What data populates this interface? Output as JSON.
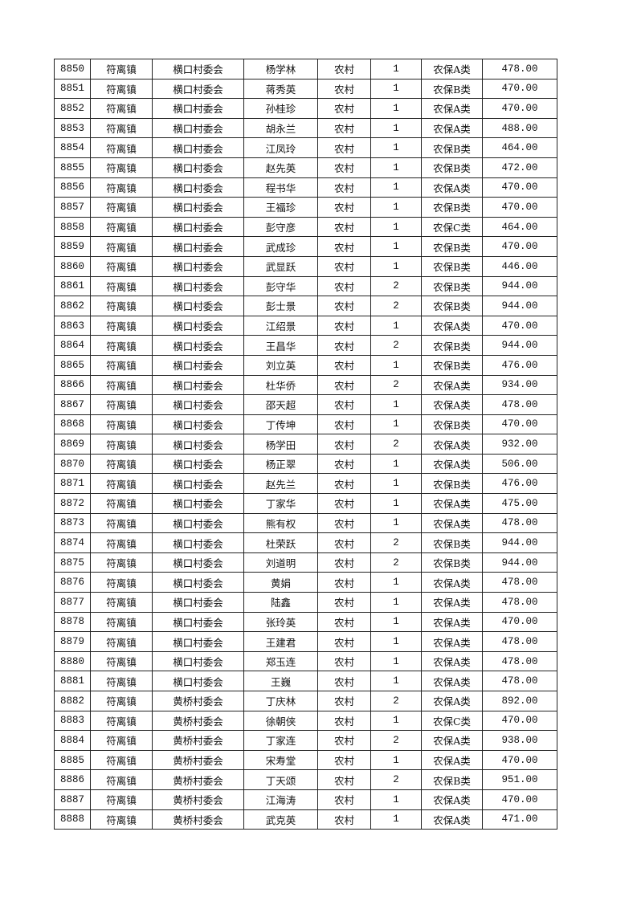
{
  "table": {
    "rows": [
      [
        "8850",
        "符离镇",
        "横口村委会",
        "杨学林",
        "农村",
        "1",
        "农保A类",
        "478.00"
      ],
      [
        "8851",
        "符离镇",
        "横口村委会",
        "蒋秀英",
        "农村",
        "1",
        "农保B类",
        "470.00"
      ],
      [
        "8852",
        "符离镇",
        "横口村委会",
        "孙桂珍",
        "农村",
        "1",
        "农保A类",
        "470.00"
      ],
      [
        "8853",
        "符离镇",
        "横口村委会",
        "胡永兰",
        "农村",
        "1",
        "农保A类",
        "488.00"
      ],
      [
        "8854",
        "符离镇",
        "横口村委会",
        "江凤玲",
        "农村",
        "1",
        "农保B类",
        "464.00"
      ],
      [
        "8855",
        "符离镇",
        "横口村委会",
        "赵先英",
        "农村",
        "1",
        "农保B类",
        "472.00"
      ],
      [
        "8856",
        "符离镇",
        "横口村委会",
        "程书华",
        "农村",
        "1",
        "农保A类",
        "470.00"
      ],
      [
        "8857",
        "符离镇",
        "横口村委会",
        "王福珍",
        "农村",
        "1",
        "农保B类",
        "470.00"
      ],
      [
        "8858",
        "符离镇",
        "横口村委会",
        "彭守彦",
        "农村",
        "1",
        "农保C类",
        "464.00"
      ],
      [
        "8859",
        "符离镇",
        "横口村委会",
        "武成珍",
        "农村",
        "1",
        "农保B类",
        "470.00"
      ],
      [
        "8860",
        "符离镇",
        "横口村委会",
        "武显跃",
        "农村",
        "1",
        "农保B类",
        "446.00"
      ],
      [
        "8861",
        "符离镇",
        "横口村委会",
        "彭守华",
        "农村",
        "2",
        "农保B类",
        "944.00"
      ],
      [
        "8862",
        "符离镇",
        "横口村委会",
        "彭士景",
        "农村",
        "2",
        "农保B类",
        "944.00"
      ],
      [
        "8863",
        "符离镇",
        "横口村委会",
        "江绍景",
        "农村",
        "1",
        "农保A类",
        "470.00"
      ],
      [
        "8864",
        "符离镇",
        "横口村委会",
        "王昌华",
        "农村",
        "2",
        "农保B类",
        "944.00"
      ],
      [
        "8865",
        "符离镇",
        "横口村委会",
        "刘立英",
        "农村",
        "1",
        "农保B类",
        "476.00"
      ],
      [
        "8866",
        "符离镇",
        "横口村委会",
        "杜华侨",
        "农村",
        "2",
        "农保A类",
        "934.00"
      ],
      [
        "8867",
        "符离镇",
        "横口村委会",
        "邵天超",
        "农村",
        "1",
        "农保A类",
        "478.00"
      ],
      [
        "8868",
        "符离镇",
        "横口村委会",
        "丁传坤",
        "农村",
        "1",
        "农保B类",
        "470.00"
      ],
      [
        "8869",
        "符离镇",
        "横口村委会",
        "杨学田",
        "农村",
        "2",
        "农保A类",
        "932.00"
      ],
      [
        "8870",
        "符离镇",
        "横口村委会",
        "杨正翠",
        "农村",
        "1",
        "农保A类",
        "506.00"
      ],
      [
        "8871",
        "符离镇",
        "横口村委会",
        "赵先兰",
        "农村",
        "1",
        "农保B类",
        "476.00"
      ],
      [
        "8872",
        "符离镇",
        "横口村委会",
        "丁家华",
        "农村",
        "1",
        "农保A类",
        "475.00"
      ],
      [
        "8873",
        "符离镇",
        "横口村委会",
        "熊有权",
        "农村",
        "1",
        "农保A类",
        "478.00"
      ],
      [
        "8874",
        "符离镇",
        "横口村委会",
        "杜荣跃",
        "农村",
        "2",
        "农保B类",
        "944.00"
      ],
      [
        "8875",
        "符离镇",
        "横口村委会",
        "刘道明",
        "农村",
        "2",
        "农保B类",
        "944.00"
      ],
      [
        "8876",
        "符离镇",
        "横口村委会",
        "黄娟",
        "农村",
        "1",
        "农保A类",
        "478.00"
      ],
      [
        "8877",
        "符离镇",
        "横口村委会",
        "陆鑫",
        "农村",
        "1",
        "农保A类",
        "478.00"
      ],
      [
        "8878",
        "符离镇",
        "横口村委会",
        "张玲英",
        "农村",
        "1",
        "农保A类",
        "470.00"
      ],
      [
        "8879",
        "符离镇",
        "横口村委会",
        "王建君",
        "农村",
        "1",
        "农保A类",
        "478.00"
      ],
      [
        "8880",
        "符离镇",
        "横口村委会",
        "郑玉连",
        "农村",
        "1",
        "农保A类",
        "478.00"
      ],
      [
        "8881",
        "符离镇",
        "横口村委会",
        "王巍",
        "农村",
        "1",
        "农保A类",
        "478.00"
      ],
      [
        "8882",
        "符离镇",
        "黄桥村委会",
        "丁庆林",
        "农村",
        "2",
        "农保A类",
        "892.00"
      ],
      [
        "8883",
        "符离镇",
        "黄桥村委会",
        "徐朝侠",
        "农村",
        "1",
        "农保C类",
        "470.00"
      ],
      [
        "8884",
        "符离镇",
        "黄桥村委会",
        "丁家连",
        "农村",
        "2",
        "农保A类",
        "938.00"
      ],
      [
        "8885",
        "符离镇",
        "黄桥村委会",
        "宋寿堂",
        "农村",
        "1",
        "农保A类",
        "470.00"
      ],
      [
        "8886",
        "符离镇",
        "黄桥村委会",
        "丁天颂",
        "农村",
        "2",
        "农保B类",
        "951.00"
      ],
      [
        "8887",
        "符离镇",
        "黄桥村委会",
        "江海涛",
        "农村",
        "1",
        "农保A类",
        "470.00"
      ],
      [
        "8888",
        "符离镇",
        "黄桥村委会",
        "武克英",
        "农村",
        "1",
        "农保A类",
        "471.00"
      ]
    ]
  }
}
